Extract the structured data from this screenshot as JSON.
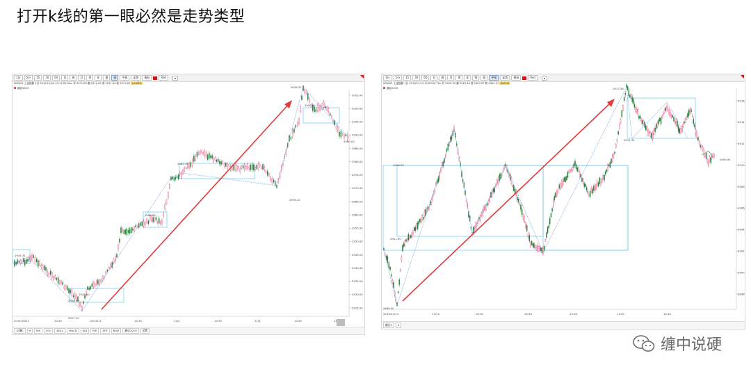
{
  "page_title": "打开k线的第一眼必然是走势类型",
  "watermark": {
    "text": "缠中说硬",
    "icon": "wechat-icon"
  },
  "colors": {
    "candle_up": "#e0306a",
    "candle_down": "#2a7a3a",
    "arrow": "#e23a3a",
    "box": "#68c8ec",
    "stroke_line": "#6ea8e0"
  },
  "left_chart": {
    "toolbar": [
      "1分",
      "5分",
      "15",
      "30",
      "60",
      "日",
      "周",
      "月",
      "季",
      "年",
      "笔",
      "段",
      "中枢",
      "走势",
      "指标",
      "Red"
    ],
    "toolbar_active": 11,
    "toolbar_dropdown": "▾",
    "info_prefix": "000001 上证指数 1分 2019/11/04 10:17:00 Mon",
    "info_values": "开 2971.69 高 2972.00 低 2971.63 收 2971.65",
    "info_highlight": "+0.07%",
    "series_label": "缠论2019",
    "y_ticks": [
      "3005.00",
      "3000.00",
      "2995.00",
      "2990.00",
      "2985.00",
      "2980.00",
      "2975.00",
      "2970.00",
      "2965.00",
      "2960.00",
      "2955.00",
      "2950.00",
      "2945.00",
      "2940.00",
      "2935.00",
      "2930.00",
      "2925.00"
    ],
    "x_ticks": [
      "2019/10/31",
      "10:30",
      "2019/11",
      "13:30",
      "11/4",
      "13:55",
      "11/5",
      "13:20",
      "14:"
    ],
    "price_labels": [
      "3006.31",
      "3000.90",
      "2990.00",
      "2982.40",
      "2976.10",
      "2964.85",
      "2945.31",
      "2926.40",
      "2917.10",
      "2928.60"
    ],
    "bottom_tabs": [
      "1F缠C",
      "▾",
      "MA",
      "VOL",
      "BOLL",
      "MACD",
      "KDJ",
      "RSI",
      "ATR",
      "BIAS",
      "缠论2019",
      "设置"
    ]
  },
  "right_chart": {
    "toolbar": [
      "1分",
      "5分",
      "15",
      "30",
      "60",
      "日",
      "周",
      "月",
      "季",
      "年",
      "笔",
      "段",
      "中枢",
      "走势",
      "指标",
      "Red"
    ],
    "toolbar_active": 12,
    "toolbar_dropdown": "▾",
    "info_prefix": "000001 上证指数 1分 2019/11/14 14:59:00 Thu",
    "info_values": "开 2910.34 高 2910.34 低 2909.97 收 2909.97",
    "info_highlight": "-0.01%",
    "series_label": "缠论2019",
    "y_ticks": [
      "2916.00",
      "2914.00",
      "2912.00",
      "2910.00",
      "2908.00",
      "2906.00",
      "2904.00",
      "2902.00",
      "2900.00",
      "2898.00"
    ],
    "x_ticks": [
      "2019/11/13",
      "11/14",
      "10:30",
      "10:50",
      "13:00",
      "13:40",
      "14:20"
    ],
    "price_labels": [
      "2917.38",
      "2912.34",
      "2908.23",
      "2901.90",
      "2896.40",
      "2909.97"
    ],
    "bottom_tabs": [
      "缠论C",
      "▾"
    ]
  }
}
